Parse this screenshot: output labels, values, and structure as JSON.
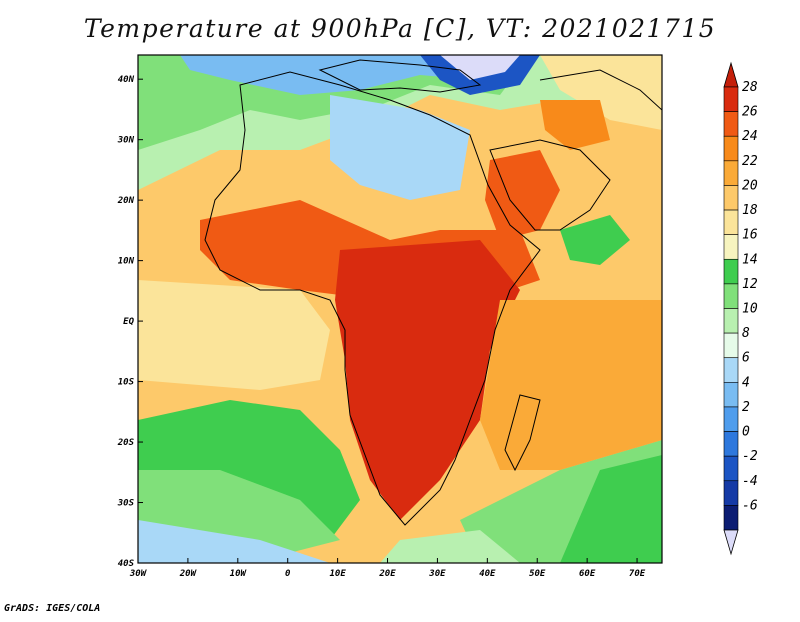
{
  "title": "Temperature at 900hPa [C], VT: 2021021715",
  "credit": "GrADS: IGES/COLA",
  "map": {
    "lon_range": [
      -30,
      75
    ],
    "lat_range": [
      -40,
      44
    ],
    "lon_ticks": [
      {
        "lon": -30,
        "label": "30W"
      },
      {
        "lon": -20,
        "label": "20W"
      },
      {
        "lon": -10,
        "label": "10W"
      },
      {
        "lon": 0,
        "label": "0"
      },
      {
        "lon": 10,
        "label": "10E"
      },
      {
        "lon": 20,
        "label": "20E"
      },
      {
        "lon": 30,
        "label": "30E"
      },
      {
        "lon": 40,
        "label": "40E"
      },
      {
        "lon": 50,
        "label": "50E"
      },
      {
        "lon": 60,
        "label": "60E"
      },
      {
        "lon": 70,
        "label": "70E"
      }
    ],
    "lat_ticks": [
      {
        "lat": 40,
        "label": "40N"
      },
      {
        "lat": 30,
        "label": "30N"
      },
      {
        "lat": 20,
        "label": "20N"
      },
      {
        "lat": 10,
        "label": "10N"
      },
      {
        "lat": 0,
        "label": "EQ"
      },
      {
        "lat": -10,
        "label": "10S"
      },
      {
        "lat": -20,
        "label": "20S"
      },
      {
        "lat": -30,
        "label": "30S"
      },
      {
        "lat": -40,
        "label": "40S"
      }
    ]
  },
  "colorbar": {
    "labels": [
      "28",
      "26",
      "24",
      "22",
      "20",
      "18",
      "16",
      "14",
      "12",
      "10",
      "8",
      "6",
      "4",
      "2",
      "0",
      "-2",
      "-4",
      "-6"
    ],
    "colors": [
      "#d92b0f",
      "#f05a14",
      "#f88a1a",
      "#faaa38",
      "#fdc96a",
      "#fbe49a",
      "#f7f4bf",
      "#3fcd4f",
      "#80e07a",
      "#b8f0b0",
      "#e6fbe9",
      "#a9d8f7",
      "#79bcf2",
      "#4f9ded",
      "#2e78dd",
      "#1c55c4",
      "#153aa6",
      "#0c1d73"
    ],
    "top_arrow_color": "#c41f0a",
    "bottom_arrow_color": "#dcdcf9"
  }
}
